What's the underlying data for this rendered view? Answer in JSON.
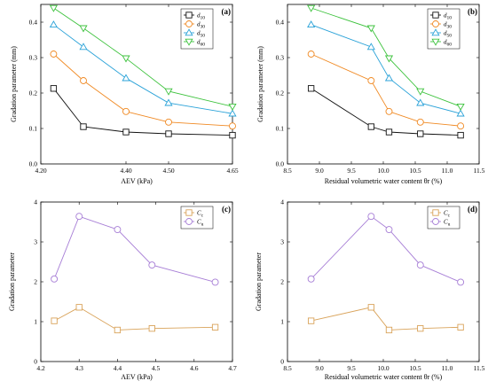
{
  "colors": {
    "d10": "#111111",
    "d30": "#f08a24",
    "d50": "#2aa2d8",
    "d60": "#3cc23c",
    "cc": "#d9a35a",
    "cu": "#a77ed6"
  },
  "chart_data": [
    {
      "type": "line",
      "panel_label": "(a)",
      "xlabel": "AEV (kPa)",
      "ylabel": "Gradation parameter (mm)",
      "x_scale": "categorical",
      "xticks": [
        "4.20",
        "4.40",
        "4.50",
        "4.65"
      ],
      "xlim": [
        4.2,
        4.65
      ],
      "ylim": [
        0.0,
        0.45
      ],
      "yticks": [
        "0.0",
        "0.1",
        "0.2",
        "0.3",
        "0.4"
      ],
      "legend_position": "top-right",
      "series": [
        {
          "name": "d10",
          "sub": "10",
          "marker": "square",
          "color_key": "d10",
          "x": [
            4.23,
            4.3,
            4.4,
            4.5,
            4.65
          ],
          "y": [
            0.213,
            0.105,
            0.09,
            0.085,
            0.081
          ]
        },
        {
          "name": "d30",
          "sub": "30",
          "marker": "circle",
          "color_key": "d30",
          "x": [
            4.23,
            4.3,
            4.4,
            4.5,
            4.65
          ],
          "y": [
            0.31,
            0.235,
            0.148,
            0.118,
            0.107
          ]
        },
        {
          "name": "d50",
          "sub": "50",
          "marker": "triangle-up",
          "color_key": "d50",
          "x": [
            4.23,
            4.3,
            4.4,
            4.5,
            4.65
          ],
          "y": [
            0.393,
            0.33,
            0.242,
            0.172,
            0.142
          ]
        },
        {
          "name": "d60",
          "sub": "60",
          "marker": "triangle-down",
          "color_key": "d60",
          "x": [
            4.23,
            4.3,
            4.4,
            4.5,
            4.65
          ],
          "y": [
            0.44,
            0.383,
            0.298,
            0.205,
            0.162
          ]
        }
      ]
    },
    {
      "type": "line",
      "panel_label": "(b)",
      "xlabel": "Residual volumetric water content θr (%)",
      "ylabel": "Gradation parameter (mm)",
      "xlim": [
        8.5,
        11.5
      ],
      "xticks": [
        "8.5",
        "9.0",
        "9.5",
        "10.0",
        "10.5",
        "11.0",
        "11.5"
      ],
      "ylim": [
        0.0,
        0.45
      ],
      "yticks": [
        "0.0",
        "0.1",
        "0.2",
        "0.3",
        "0.4"
      ],
      "legend_position": "top-right",
      "series": [
        {
          "name": "d10",
          "sub": "10",
          "marker": "square",
          "color_key": "d10",
          "x": [
            8.87,
            9.81,
            10.09,
            10.58,
            11.21
          ],
          "y": [
            0.213,
            0.105,
            0.09,
            0.085,
            0.081
          ]
        },
        {
          "name": "d30",
          "sub": "30",
          "marker": "circle",
          "color_key": "d30",
          "x": [
            8.87,
            9.81,
            10.09,
            10.58,
            11.21
          ],
          "y": [
            0.31,
            0.235,
            0.148,
            0.118,
            0.107
          ]
        },
        {
          "name": "d50",
          "sub": "50",
          "marker": "triangle-up",
          "color_key": "d50",
          "x": [
            8.87,
            9.81,
            10.09,
            10.58,
            11.21
          ],
          "y": [
            0.393,
            0.33,
            0.242,
            0.172,
            0.142
          ]
        },
        {
          "name": "d60",
          "sub": "60",
          "marker": "triangle-down",
          "color_key": "d60",
          "x": [
            8.87,
            9.81,
            10.09,
            10.58,
            11.21
          ],
          "y": [
            0.44,
            0.383,
            0.298,
            0.205,
            0.162
          ]
        }
      ]
    },
    {
      "type": "line",
      "panel_label": "(c)",
      "xlabel": "AEV (kPa)",
      "ylabel": "Gradation parameter",
      "xlim": [
        4.2,
        4.7
      ],
      "xticks": [
        "4.2",
        "4.3",
        "4.4",
        "4.5",
        "4.6",
        "4.7"
      ],
      "ylim": [
        0,
        4
      ],
      "yticks": [
        "0",
        "1",
        "2",
        "3",
        "4"
      ],
      "legend_position": "top-right",
      "series": [
        {
          "name": "Cc",
          "sub": "c",
          "marker": "square",
          "color_key": "cc",
          "x": [
            4.235,
            4.3,
            4.4,
            4.49,
            4.655
          ],
          "y": [
            1.02,
            1.36,
            0.79,
            0.83,
            0.86
          ]
        },
        {
          "name": "Cu",
          "sub": "u",
          "marker": "circle",
          "color_key": "cu",
          "x": [
            4.235,
            4.3,
            4.4,
            4.49,
            4.655
          ],
          "y": [
            2.07,
            3.64,
            3.31,
            2.42,
            1.99
          ]
        }
      ]
    },
    {
      "type": "line",
      "panel_label": "(d)",
      "xlabel": "Residual volumetric water content θr (%)",
      "ylabel": "Gradation parameter",
      "xlim": [
        8.5,
        11.5
      ],
      "xticks": [
        "8.5",
        "9.0",
        "9.5",
        "10.0",
        "10.5",
        "11.0",
        "11.5"
      ],
      "ylim": [
        0,
        4
      ],
      "yticks": [
        "0",
        "1",
        "2",
        "3",
        "4"
      ],
      "legend_position": "top-right",
      "series": [
        {
          "name": "Cc",
          "sub": "c",
          "marker": "square",
          "color_key": "cc",
          "x": [
            8.87,
            9.81,
            10.09,
            10.58,
            11.21
          ],
          "y": [
            1.02,
            1.36,
            0.79,
            0.83,
            0.86
          ]
        },
        {
          "name": "Cu",
          "sub": "u",
          "marker": "circle",
          "color_key": "cu",
          "x": [
            8.87,
            9.81,
            10.09,
            10.58,
            11.21
          ],
          "y": [
            2.07,
            3.64,
            3.31,
            2.42,
            1.99
          ]
        }
      ]
    }
  ]
}
